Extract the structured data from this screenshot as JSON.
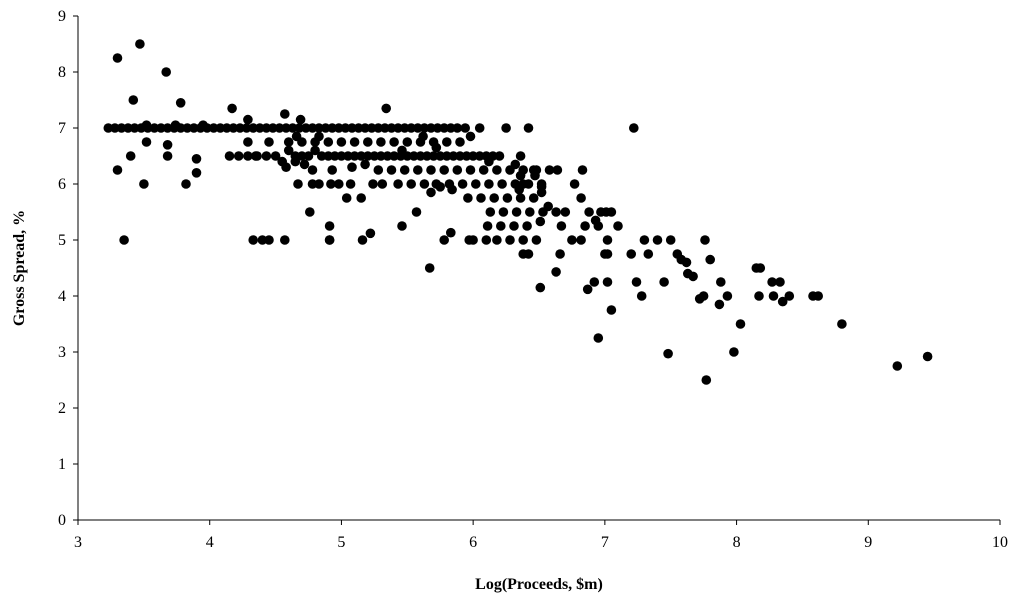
{
  "chart_data": {
    "type": "scatter",
    "title": "",
    "xlabel": "Log(Proceeds, $m)",
    "ylabel": "Gross Spread, %",
    "xlim": [
      3,
      10
    ],
    "ylim": [
      0,
      9
    ],
    "xticks": [
      "3",
      "4",
      "5",
      "6",
      "7",
      "8",
      "9",
      "10"
    ],
    "yticks": [
      "0",
      "1",
      "2",
      "3",
      "4",
      "5",
      "6",
      "7",
      "8",
      "9"
    ],
    "grid": false,
    "legend": "none",
    "marker_color": "#000000",
    "series": [
      {
        "points": [
          [
            3.23,
            7.0
          ],
          [
            3.28,
            7.0
          ],
          [
            3.33,
            7.0
          ],
          [
            3.38,
            7.0
          ],
          [
            3.43,
            7.0
          ],
          [
            3.48,
            7.0
          ],
          [
            3.53,
            7.0
          ],
          [
            3.58,
            7.0
          ],
          [
            3.63,
            7.0
          ],
          [
            3.68,
            7.0
          ],
          [
            3.73,
            7.0
          ],
          [
            3.78,
            7.0
          ],
          [
            3.83,
            7.0
          ],
          [
            3.88,
            7.0
          ],
          [
            3.93,
            7.0
          ],
          [
            3.98,
            7.0
          ],
          [
            4.03,
            7.0
          ],
          [
            4.08,
            7.0
          ],
          [
            4.13,
            7.0
          ],
          [
            4.18,
            7.0
          ],
          [
            4.23,
            7.0
          ],
          [
            4.28,
            7.0
          ],
          [
            4.33,
            7.0
          ],
          [
            4.38,
            7.0
          ],
          [
            4.43,
            7.0
          ],
          [
            4.48,
            7.0
          ],
          [
            4.53,
            7.0
          ],
          [
            4.58,
            7.0
          ],
          [
            4.63,
            7.0
          ],
          [
            4.68,
            7.0
          ],
          [
            4.73,
            7.0
          ],
          [
            4.78,
            7.0
          ],
          [
            4.83,
            7.0
          ],
          [
            4.88,
            7.0
          ],
          [
            4.93,
            7.0
          ],
          [
            4.98,
            7.0
          ],
          [
            5.03,
            7.0
          ],
          [
            5.08,
            7.0
          ],
          [
            5.13,
            7.0
          ],
          [
            5.18,
            7.0
          ],
          [
            5.23,
            7.0
          ],
          [
            5.28,
            7.0
          ],
          [
            5.33,
            7.0
          ],
          [
            5.38,
            7.0
          ],
          [
            5.43,
            7.0
          ],
          [
            5.48,
            7.0
          ],
          [
            5.53,
            7.0
          ],
          [
            5.58,
            7.0
          ],
          [
            5.63,
            7.0
          ],
          [
            5.68,
            7.0
          ],
          [
            5.73,
            7.0
          ],
          [
            5.78,
            7.0
          ],
          [
            5.83,
            7.0
          ],
          [
            5.88,
            7.0
          ],
          [
            3.3,
            8.25
          ],
          [
            3.47,
            8.5
          ],
          [
            3.67,
            8.0
          ],
          [
            3.42,
            7.5
          ],
          [
            3.78,
            7.45
          ],
          [
            4.17,
            7.35
          ],
          [
            4.29,
            7.15
          ],
          [
            4.57,
            7.25
          ],
          [
            4.69,
            7.15
          ],
          [
            5.34,
            7.35
          ],
          [
            7.22,
            7.0
          ],
          [
            6.25,
            7.0
          ],
          [
            6.42,
            7.0
          ],
          [
            6.05,
            7.0
          ],
          [
            5.94,
            7.0
          ],
          [
            3.52,
            7.05
          ],
          [
            3.74,
            7.05
          ],
          [
            3.95,
            7.05
          ],
          [
            3.3,
            6.25
          ],
          [
            3.4,
            6.5
          ],
          [
            3.5,
            6.0
          ],
          [
            3.52,
            6.75
          ],
          [
            3.68,
            6.7
          ],
          [
            3.68,
            6.5
          ],
          [
            3.82,
            6.0
          ],
          [
            3.9,
            6.2
          ],
          [
            3.9,
            6.45
          ],
          [
            3.35,
            5.0
          ],
          [
            4.15,
            6.5
          ],
          [
            4.22,
            6.5
          ],
          [
            4.29,
            6.5
          ],
          [
            4.36,
            6.5
          ],
          [
            4.43,
            6.5
          ],
          [
            4.5,
            6.5
          ],
          [
            4.6,
            6.6
          ],
          [
            4.65,
            6.5
          ],
          [
            4.7,
            6.5
          ],
          [
            4.75,
            6.5
          ],
          [
            4.8,
            6.6
          ],
          [
            4.85,
            6.5
          ],
          [
            4.9,
            6.5
          ],
          [
            4.95,
            6.5
          ],
          [
            5.0,
            6.5
          ],
          [
            5.05,
            6.5
          ],
          [
            5.1,
            6.5
          ],
          [
            5.15,
            6.5
          ],
          [
            5.2,
            6.5
          ],
          [
            5.25,
            6.5
          ],
          [
            5.3,
            6.5
          ],
          [
            5.35,
            6.5
          ],
          [
            5.4,
            6.5
          ],
          [
            5.45,
            6.5
          ],
          [
            5.5,
            6.5
          ],
          [
            5.55,
            6.5
          ],
          [
            5.6,
            6.5
          ],
          [
            5.65,
            6.5
          ],
          [
            5.7,
            6.5
          ],
          [
            5.75,
            6.5
          ],
          [
            5.8,
            6.5
          ],
          [
            5.85,
            6.5
          ],
          [
            5.9,
            6.5
          ],
          [
            5.95,
            6.5
          ],
          [
            6.0,
            6.5
          ],
          [
            6.05,
            6.5
          ],
          [
            6.1,
            6.5
          ],
          [
            6.15,
            6.5
          ],
          [
            6.2,
            6.5
          ],
          [
            4.29,
            6.75
          ],
          [
            4.45,
            6.75
          ],
          [
            4.6,
            6.75
          ],
          [
            4.7,
            6.75
          ],
          [
            4.8,
            6.75
          ],
          [
            4.9,
            6.75
          ],
          [
            5.0,
            6.75
          ],
          [
            5.1,
            6.75
          ],
          [
            5.2,
            6.75
          ],
          [
            5.3,
            6.75
          ],
          [
            5.4,
            6.75
          ],
          [
            5.5,
            6.75
          ],
          [
            5.6,
            6.75
          ],
          [
            5.7,
            6.75
          ],
          [
            5.8,
            6.75
          ],
          [
            5.9,
            6.75
          ],
          [
            5.98,
            6.85
          ],
          [
            5.62,
            6.85
          ],
          [
            5.72,
            6.65
          ],
          [
            5.46,
            6.6
          ],
          [
            4.66,
            6.85
          ],
          [
            4.83,
            6.85
          ],
          [
            4.35,
            6.5
          ],
          [
            4.55,
            6.4
          ],
          [
            4.58,
            6.3
          ],
          [
            4.65,
            6.4
          ],
          [
            4.72,
            6.35
          ],
          [
            4.78,
            6.25
          ],
          [
            4.93,
            6.25
          ],
          [
            5.08,
            6.3
          ],
          [
            5.18,
            6.35
          ],
          [
            5.28,
            6.25
          ],
          [
            5.38,
            6.25
          ],
          [
            5.48,
            6.25
          ],
          [
            5.58,
            6.25
          ],
          [
            5.68,
            6.25
          ],
          [
            5.78,
            6.25
          ],
          [
            5.88,
            6.25
          ],
          [
            5.98,
            6.25
          ],
          [
            6.08,
            6.25
          ],
          [
            6.18,
            6.25
          ],
          [
            6.28,
            6.25
          ],
          [
            6.38,
            6.25
          ],
          [
            6.48,
            6.25
          ],
          [
            6.58,
            6.25
          ],
          [
            6.64,
            6.25
          ],
          [
            6.32,
            6.35
          ],
          [
            6.12,
            6.4
          ],
          [
            6.36,
            6.5
          ],
          [
            4.67,
            6.0
          ],
          [
            4.78,
            6.0
          ],
          [
            4.83,
            6.0
          ],
          [
            4.92,
            6.0
          ],
          [
            4.98,
            6.0
          ],
          [
            5.07,
            6.0
          ],
          [
            5.24,
            6.0
          ],
          [
            5.31,
            6.0
          ],
          [
            5.43,
            6.0
          ],
          [
            5.53,
            6.0
          ],
          [
            5.63,
            6.0
          ],
          [
            5.72,
            6.0
          ],
          [
            5.82,
            6.0
          ],
          [
            5.92,
            6.0
          ],
          [
            6.02,
            6.0
          ],
          [
            6.12,
            6.0
          ],
          [
            6.22,
            6.0
          ],
          [
            6.32,
            6.0
          ],
          [
            6.42,
            6.0
          ],
          [
            6.52,
            6.0
          ],
          [
            6.47,
            6.15
          ],
          [
            6.52,
            5.95
          ],
          [
            6.52,
            5.85
          ],
          [
            6.36,
            6.15
          ],
          [
            6.46,
            6.25
          ],
          [
            6.38,
            6.0
          ],
          [
            6.35,
            5.9
          ],
          [
            5.68,
            5.85
          ],
          [
            5.75,
            5.95
          ],
          [
            5.84,
            5.9
          ],
          [
            5.96,
            5.75
          ],
          [
            6.06,
            5.75
          ],
          [
            6.16,
            5.75
          ],
          [
            6.26,
            5.75
          ],
          [
            6.36,
            5.75
          ],
          [
            6.46,
            5.75
          ],
          [
            6.13,
            5.5
          ],
          [
            6.23,
            5.5
          ],
          [
            6.33,
            5.5
          ],
          [
            6.43,
            5.5
          ],
          [
            6.53,
            5.5
          ],
          [
            6.63,
            5.5
          ],
          [
            6.7,
            5.5
          ],
          [
            6.57,
            5.6
          ],
          [
            6.77,
            6.0
          ],
          [
            6.83,
            6.25
          ],
          [
            6.82,
            5.75
          ],
          [
            6.88,
            5.5
          ],
          [
            4.76,
            5.5
          ],
          [
            4.91,
            5.25
          ],
          [
            4.91,
            5.0
          ],
          [
            5.04,
            5.75
          ],
          [
            5.15,
            5.75
          ],
          [
            5.16,
            5.0
          ],
          [
            5.22,
            5.12
          ],
          [
            5.46,
            5.25
          ],
          [
            5.57,
            5.5
          ],
          [
            5.67,
            4.5
          ],
          [
            5.78,
            5.0
          ],
          [
            5.83,
            5.13
          ],
          [
            5.97,
            5.0
          ],
          [
            6.0,
            5.0
          ],
          [
            6.1,
            5.0
          ],
          [
            6.18,
            5.0
          ],
          [
            6.28,
            5.0
          ],
          [
            6.38,
            5.0
          ],
          [
            6.48,
            5.0
          ],
          [
            6.11,
            5.25
          ],
          [
            6.21,
            5.25
          ],
          [
            6.31,
            5.25
          ],
          [
            6.41,
            5.25
          ],
          [
            6.51,
            5.33
          ],
          [
            6.38,
            4.75
          ],
          [
            6.42,
            4.75
          ],
          [
            6.51,
            4.15
          ],
          [
            6.66,
            4.75
          ],
          [
            6.67,
            5.25
          ],
          [
            6.75,
            5.0
          ],
          [
            6.82,
            5.0
          ],
          [
            6.85,
            5.25
          ],
          [
            4.33,
            5.0
          ],
          [
            4.4,
            5.0
          ],
          [
            4.45,
            5.0
          ],
          [
            4.57,
            5.0
          ],
          [
            4.91,
            5.0
          ],
          [
            6.63,
            4.43
          ],
          [
            6.87,
            4.12
          ],
          [
            6.92,
            4.25
          ],
          [
            6.95,
            5.25
          ],
          [
            6.97,
            5.5
          ],
          [
            7.01,
            5.5
          ],
          [
            7.05,
            5.5
          ],
          [
            7.02,
            4.75
          ],
          [
            7.02,
            4.25
          ],
          [
            7.05,
            3.75
          ],
          [
            7.1,
            5.25
          ],
          [
            6.95,
            3.25
          ],
          [
            7.02,
            5.0
          ],
          [
            6.93,
            5.35
          ],
          [
            7.0,
            4.75
          ],
          [
            7.2,
            4.75
          ],
          [
            7.24,
            4.25
          ],
          [
            7.28,
            4.0
          ],
          [
            7.3,
            5.0
          ],
          [
            7.33,
            4.75
          ],
          [
            7.4,
            5.0
          ],
          [
            7.45,
            4.25
          ],
          [
            7.5,
            5.0
          ],
          [
            7.55,
            4.75
          ],
          [
            7.58,
            4.65
          ],
          [
            7.62,
            4.6
          ],
          [
            7.63,
            4.4
          ],
          [
            7.67,
            4.35
          ],
          [
            7.72,
            3.95
          ],
          [
            7.75,
            4.0
          ],
          [
            7.76,
            5.0
          ],
          [
            7.8,
            4.65
          ],
          [
            7.48,
            2.97
          ],
          [
            7.77,
            2.5
          ],
          [
            7.87,
            3.85
          ],
          [
            7.88,
            4.25
          ],
          [
            7.93,
            4.0
          ],
          [
            7.98,
            3.0
          ],
          [
            8.03,
            3.5
          ],
          [
            8.15,
            4.5
          ],
          [
            8.17,
            4.0
          ],
          [
            8.18,
            4.5
          ],
          [
            8.27,
            4.25
          ],
          [
            8.28,
            4.0
          ],
          [
            8.33,
            4.25
          ],
          [
            8.35,
            3.9
          ],
          [
            8.4,
            4.0
          ],
          [
            8.58,
            4.0
          ],
          [
            8.62,
            4.0
          ],
          [
            8.8,
            3.5
          ],
          [
            9.22,
            2.75
          ],
          [
            9.45,
            2.92
          ]
        ]
      }
    ]
  }
}
